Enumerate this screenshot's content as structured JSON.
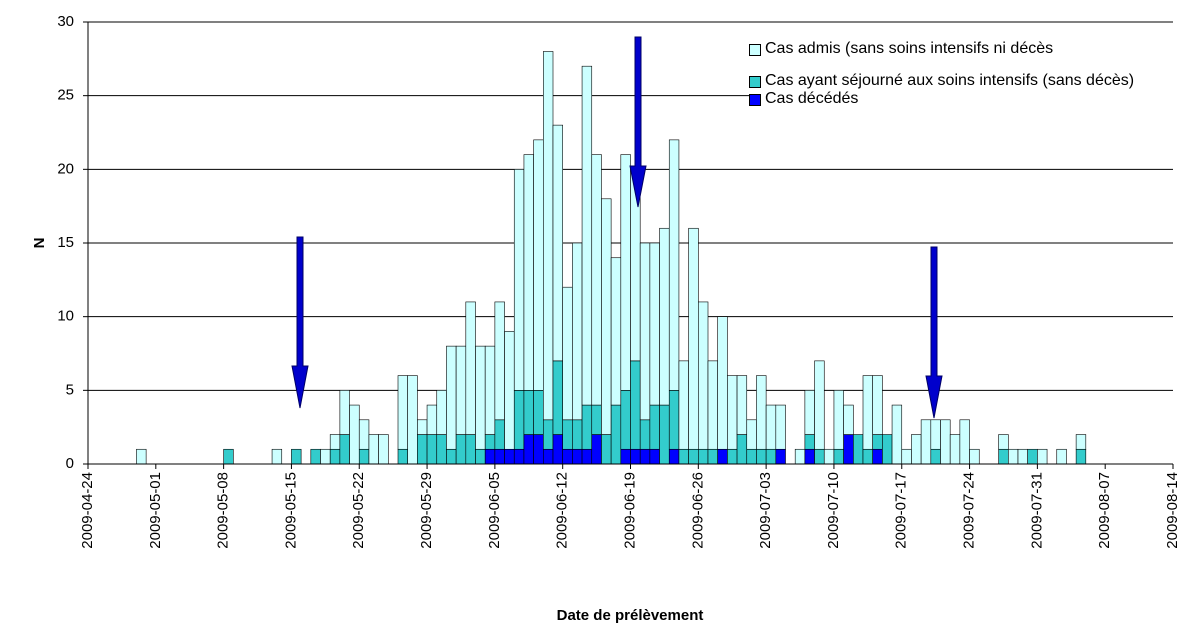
{
  "chart_data": {
    "type": "stacked-bar",
    "x_label": "Date de prélèvement",
    "y_label": "N",
    "categories": [
      "2009-04-24",
      null,
      null,
      null,
      null,
      null,
      null,
      "2009-05-01",
      null,
      null,
      null,
      null,
      null,
      null,
      "2009-05-08",
      null,
      null,
      null,
      null,
      null,
      null,
      "2009-05-15",
      null,
      null,
      null,
      null,
      null,
      null,
      "2009-05-22",
      null,
      null,
      null,
      null,
      null,
      null,
      "2009-05-29",
      null,
      null,
      null,
      null,
      null,
      null,
      "2009-06-05",
      null,
      null,
      null,
      null,
      null,
      null,
      "2009-06-12",
      null,
      null,
      null,
      null,
      null,
      null,
      "2009-06-19",
      null,
      null,
      null,
      null,
      null,
      null,
      "2009-06-26",
      null,
      null,
      null,
      null,
      null,
      null,
      "2009-07-03",
      null,
      null,
      null,
      null,
      null,
      null,
      "2009-07-10",
      null,
      null,
      null,
      null,
      null,
      null,
      "2009-07-17",
      null,
      null,
      null,
      null,
      null,
      null,
      "2009-07-24",
      null,
      null,
      null,
      null,
      null,
      null,
      "2009-07-31",
      null,
      null,
      null,
      null,
      null,
      null,
      "2009-08-07",
      null,
      null,
      null,
      null,
      null,
      null,
      "2009-08-14"
    ],
    "series": [
      {
        "name": "Cas admis (sans soins intensifs ni décès",
        "color": "#ccffff",
        "values": [
          0,
          0,
          0,
          0,
          0,
          1,
          0,
          0,
          0,
          0,
          0,
          0,
          0,
          0,
          0,
          0,
          0,
          0,
          0,
          1,
          0,
          0,
          0,
          0,
          1,
          1,
          3,
          4,
          2,
          2,
          2,
          0,
          5,
          6,
          1,
          2,
          3,
          7,
          6,
          9,
          7,
          6,
          8,
          8,
          15,
          16,
          17,
          25,
          16,
          9,
          12,
          23,
          17,
          16,
          10,
          16,
          13,
          12,
          11,
          12,
          17,
          6,
          15,
          10,
          6,
          9,
          5,
          4,
          2,
          5,
          3,
          3,
          0,
          1,
          3,
          6,
          1,
          4,
          2,
          0,
          5,
          4,
          0,
          4,
          1,
          2,
          3,
          2,
          3,
          2,
          3,
          1,
          0,
          0,
          1,
          1,
          1,
          0,
          1,
          0,
          1,
          0,
          1,
          0,
          0,
          0,
          0,
          0,
          0,
          0,
          0,
          0,
          0
        ]
      },
      {
        "name": "Cas ayant séjourné aux soins intensifs (sans décès)",
        "color": "#33cccc",
        "values": [
          0,
          0,
          0,
          0,
          0,
          0,
          0,
          0,
          0,
          0,
          0,
          0,
          0,
          0,
          1,
          0,
          0,
          0,
          0,
          0,
          0,
          1,
          0,
          1,
          0,
          1,
          2,
          0,
          1,
          0,
          0,
          0,
          1,
          0,
          2,
          2,
          2,
          1,
          2,
          2,
          1,
          1,
          2,
          0,
          4,
          3,
          3,
          2,
          5,
          2,
          2,
          3,
          2,
          2,
          4,
          4,
          6,
          2,
          3,
          4,
          4,
          1,
          1,
          1,
          1,
          0,
          1,
          2,
          1,
          1,
          1,
          0,
          0,
          0,
          1,
          1,
          0,
          1,
          0,
          2,
          1,
          1,
          2,
          0,
          0,
          0,
          0,
          1,
          0,
          0,
          0,
          0,
          0,
          0,
          1,
          0,
          0,
          1,
          0,
          0,
          0,
          0,
          1,
          0,
          0,
          0,
          0,
          0,
          0,
          0,
          0,
          0,
          0
        ]
      },
      {
        "name": "Cas décédés",
        "color": "#0000ff",
        "values": [
          0,
          0,
          0,
          0,
          0,
          0,
          0,
          0,
          0,
          0,
          0,
          0,
          0,
          0,
          0,
          0,
          0,
          0,
          0,
          0,
          0,
          0,
          0,
          0,
          0,
          0,
          0,
          0,
          0,
          0,
          0,
          0,
          0,
          0,
          0,
          0,
          0,
          0,
          0,
          0,
          0,
          1,
          1,
          1,
          1,
          2,
          2,
          1,
          2,
          1,
          1,
          1,
          2,
          0,
          0,
          1,
          1,
          1,
          1,
          0,
          1,
          0,
          0,
          0,
          0,
          1,
          0,
          0,
          0,
          0,
          0,
          1,
          0,
          0,
          1,
          0,
          0,
          0,
          2,
          0,
          0,
          1,
          0,
          0,
          0,
          0,
          0,
          0,
          0,
          0,
          0,
          0,
          0,
          0,
          0,
          0,
          0,
          0,
          0,
          0,
          0,
          0,
          0,
          0,
          0,
          0,
          0,
          0,
          0,
          0,
          0,
          0,
          0
        ]
      }
    ],
    "ylim": [
      0,
      30
    ],
    "yticks": [
      0,
      5,
      10,
      15,
      20,
      25,
      30
    ],
    "grid": true
  }
}
